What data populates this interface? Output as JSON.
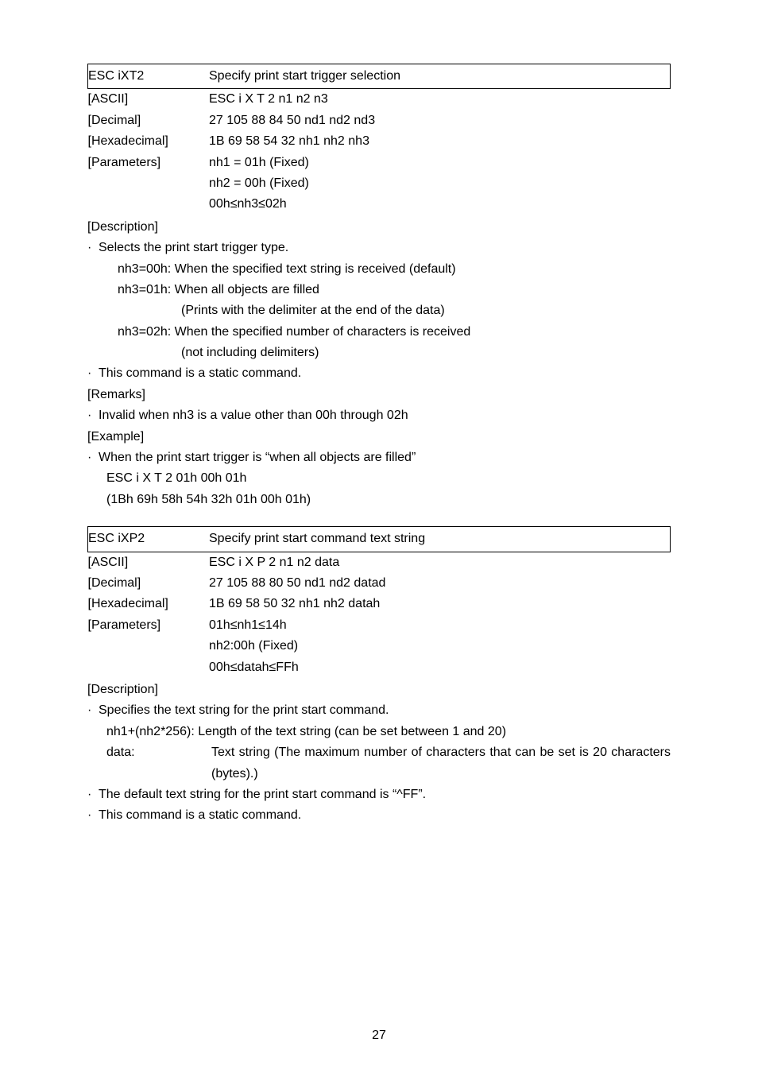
{
  "cmd1": {
    "name": "ESC iXT2",
    "desc": "Specify print start trigger selection",
    "rows": {
      "ascii_label": "[ASCII]",
      "ascii_val": "ESC i X T 2 n1 n2 n3",
      "decimal_label": "[Decimal]",
      "decimal_val": "27 105 88 84 50 nd1 nd2 nd3",
      "hex_label": "[Hexadecimal]",
      "hex_val": "1B 69 58 54 32 nh1 nh2 nh3",
      "param_label": "[Parameters]",
      "param_val1": "nh1 = 01h (Fixed)",
      "param_val2": "nh2 = 00h (Fixed)",
      "param_val3": "00h≤nh3≤02h"
    },
    "description_label": "[Description]",
    "d1": "Selects the print start trigger type.",
    "d2": "nh3=00h: When the specified text string is received (default)",
    "d3": "nh3=01h: When all objects are filled",
    "d4": "(Prints with the delimiter at the end of the data)",
    "d5": "nh3=02h: When the specified number of characters is received",
    "d6": "(not including delimiters)",
    "d7": "This command is a static command.",
    "remarks_label": "[Remarks]",
    "r1": "Invalid when nh3 is a value other than 00h through 02h",
    "example_label": "[Example]",
    "e1": "When the print start trigger is “when all objects are filled”",
    "e2": "ESC i X T 2 01h 00h 01h",
    "e3": "(1Bh 69h 58h 54h 32h 01h 00h 01h)"
  },
  "cmd2": {
    "name": "ESC iXP2",
    "desc": "Specify print start command text string",
    "rows": {
      "ascii_label": "[ASCII]",
      "ascii_val": "ESC i X P 2 n1 n2 data",
      "decimal_label": "[Decimal]",
      "decimal_val": "27 105 88 80 50 nd1 nd2 datad",
      "hex_label": "[Hexadecimal]",
      "hex_val": "1B 69 58 50 32 nh1 nh2 datah",
      "param_label": "[Parameters]",
      "param_val1": "01h≤nh1≤14h",
      "param_val2": "nh2:00h (Fixed)",
      "param_val3": "00h≤datah≤FFh"
    },
    "description_label": "[Description]",
    "d1": "Specifies the text string for the print start command.",
    "d2": "nh1+(nh2*256): Length of the text string (can be set between 1 and 20)",
    "d3_label": "data:",
    "d3_val": "Text string (The maximum number of characters that can be set is 20 characters (bytes).)",
    "d4": "The default text string for the print start command is “^FF”.",
    "d5": "This command is a static command."
  },
  "page_number": "27"
}
